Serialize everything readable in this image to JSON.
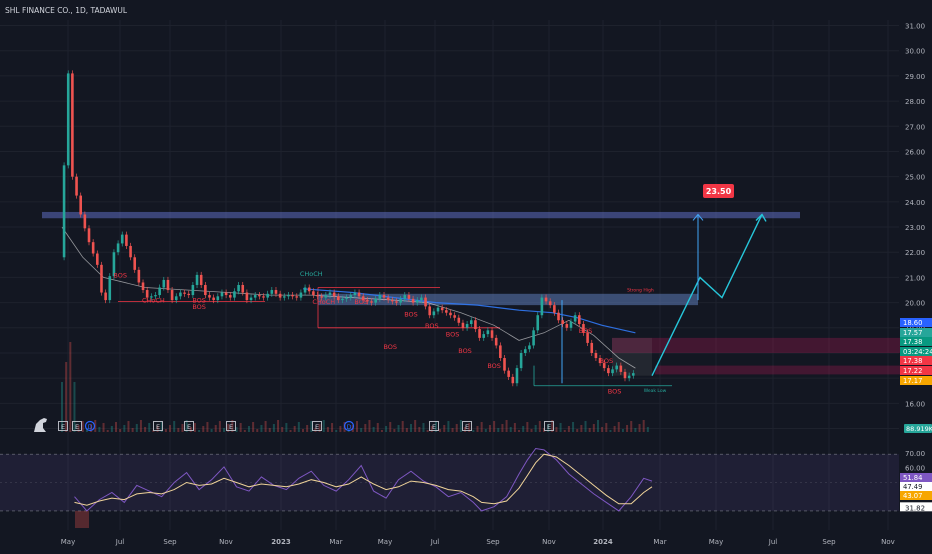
{
  "chart_data": {
    "type": "line",
    "title": "SHL FINANCE CO., 1D, TADAWUL",
    "price_scale": {
      "ylim": [
        15.3,
        31.3
      ],
      "ticks": [
        "31.00",
        "30.00",
        "29.00",
        "28.00",
        "27.00",
        "26.00",
        "25.00",
        "24.00",
        "23.00",
        "22.00",
        "21.00",
        "20.00",
        "19.00",
        "18.00",
        "17.00",
        "16.00",
        "15.00"
      ]
    },
    "time_axis": {
      "labels": [
        "May",
        "Jul",
        "Sep",
        "Nov",
        "2023",
        "Mar",
        "May",
        "Jul",
        "Sep",
        "Nov",
        "2024",
        "Mar",
        "May",
        "Jul",
        "Sep",
        "Nov"
      ],
      "bold": [
        "2023",
        "2024"
      ]
    },
    "price_series": {
      "name": "SHL FINANCE CO.",
      "points": [
        [
          0,
          21.8
        ],
        [
          2,
          29.1
        ],
        [
          3,
          25.0
        ],
        [
          5,
          23.5
        ],
        [
          7,
          22.4
        ],
        [
          9,
          21.5
        ],
        [
          10,
          20.4
        ],
        [
          11,
          20.1
        ],
        [
          13,
          22.0
        ],
        [
          15,
          22.7
        ],
        [
          17,
          21.8
        ],
        [
          19,
          20.8
        ],
        [
          21,
          20.2
        ],
        [
          23,
          20.3
        ],
        [
          25,
          20.9
        ],
        [
          27,
          20.1
        ],
        [
          29,
          20.4
        ],
        [
          31,
          20.3
        ],
        [
          33,
          21.1
        ],
        [
          35,
          20.3
        ],
        [
          37,
          20.1
        ],
        [
          39,
          20.4
        ],
        [
          41,
          20.2
        ],
        [
          43,
          20.7
        ],
        [
          45,
          20.1
        ],
        [
          47,
          20.3
        ],
        [
          49,
          20.2
        ],
        [
          51,
          20.5
        ],
        [
          53,
          20.2
        ],
        [
          55,
          20.3
        ],
        [
          57,
          20.2
        ],
        [
          59,
          20.6
        ],
        [
          61,
          20.3
        ],
        [
          63,
          20.2
        ],
        [
          65,
          20.4
        ],
        [
          67,
          20.1
        ],
        [
          69,
          20.2
        ],
        [
          71,
          20.4
        ],
        [
          73,
          20.1
        ],
        [
          75,
          20.0
        ],
        [
          77,
          20.3
        ],
        [
          79,
          20.1
        ],
        [
          81,
          20.0
        ],
        [
          83,
          20.3
        ],
        [
          85,
          20.0
        ],
        [
          87,
          20.2
        ],
        [
          89,
          19.5
        ],
        [
          91,
          19.8
        ],
        [
          93,
          19.6
        ],
        [
          95,
          19.4
        ],
        [
          97,
          19.0
        ],
        [
          99,
          19.3
        ],
        [
          101,
          18.6
        ],
        [
          103,
          18.9
        ],
        [
          105,
          18.3
        ],
        [
          107,
          17.3
        ],
        [
          109,
          16.8
        ],
        [
          111,
          18.0
        ],
        [
          113,
          18.3
        ],
        [
          115,
          19.5
        ],
        [
          116,
          20.2
        ],
        [
          118,
          19.9
        ],
        [
          120,
          19.3
        ],
        [
          122,
          19.0
        ],
        [
          124,
          19.5
        ],
        [
          126,
          18.8
        ],
        [
          128,
          18.0
        ],
        [
          130,
          17.6
        ],
        [
          132,
          17.2
        ],
        [
          134,
          17.5
        ],
        [
          136,
          17.0
        ],
        [
          138,
          17.2
        ]
      ]
    },
    "moving_averages": [
      {
        "color": "#3179f5",
        "points": [
          [
            58,
            20.55
          ],
          [
            70,
            20.4
          ],
          [
            80,
            20.2
          ],
          [
            90,
            20.0
          ],
          [
            100,
            19.9
          ],
          [
            110,
            19.7
          ],
          [
            118,
            19.6
          ],
          [
            124,
            19.4
          ],
          [
            130,
            19.1
          ],
          [
            138,
            18.8
          ]
        ]
      },
      {
        "color": "#ffffff",
        "points": [
          [
            0,
            23.0
          ],
          [
            5,
            21.8
          ],
          [
            10,
            21.0
          ],
          [
            20,
            20.6
          ],
          [
            30,
            20.5
          ],
          [
            40,
            20.4
          ],
          [
            50,
            20.3
          ],
          [
            60,
            20.3
          ],
          [
            70,
            20.2
          ],
          [
            80,
            20.1
          ],
          [
            88,
            20.0
          ],
          [
            96,
            19.6
          ],
          [
            104,
            19.1
          ],
          [
            110,
            18.5
          ],
          [
            116,
            18.8
          ],
          [
            122,
            19.3
          ],
          [
            128,
            18.7
          ],
          [
            134,
            17.8
          ],
          [
            138,
            17.4
          ]
        ]
      }
    ],
    "resistance_zone": {
      "label": "",
      "range": [
        23.35,
        23.6
      ]
    },
    "target_label": "23.50",
    "structure_labels": [
      {
        "text": "BOS",
        "x": 14,
        "y": 21.0
      },
      {
        "text": "CHoCH",
        "x": 22,
        "y": 20.0
      },
      {
        "text": "BOS",
        "x": 33,
        "y": 20.0
      },
      {
        "text": "BOS",
        "x": 33,
        "y": 19.75
      },
      {
        "text": "CHoCH",
        "x": 60,
        "y": 21.05
      },
      {
        "text": "CHoCH",
        "x": 63,
        "y": 19.95
      },
      {
        "text": "BOS",
        "x": 72,
        "y": 19.95
      },
      {
        "text": "BOS",
        "x": 84,
        "y": 19.45
      },
      {
        "text": "BOS",
        "x": 89,
        "y": 19.0
      },
      {
        "text": "BOS",
        "x": 79,
        "y": 18.15
      },
      {
        "text": "BOS",
        "x": 94,
        "y": 18.65
      },
      {
        "text": "BOS",
        "x": 97,
        "y": 18.0
      },
      {
        "text": "BOS",
        "x": 104,
        "y": 17.4
      },
      {
        "text": "BOS",
        "x": 126,
        "y": 18.8
      },
      {
        "text": "BOS",
        "x": 131,
        "y": 17.6
      },
      {
        "text": "BOS",
        "x": 133,
        "y": 16.4
      }
    ],
    "small_labels": [
      {
        "text": "Strong High",
        "x": 136,
        "y": 20.45
      },
      {
        "text": "Weak Low",
        "x": 140,
        "y": 16.45
      }
    ],
    "price_badges": [
      {
        "text": "18.60",
        "bg": "#2962ff"
      },
      {
        "text": "17.57",
        "bg": "#26a69a"
      },
      {
        "text": "17.38",
        "bg": "#089981"
      },
      {
        "text": "03:24:24",
        "bg": "#089981"
      },
      {
        "text": "17.38",
        "bg": "#f23645"
      },
      {
        "text": "17.22",
        "bg": "#f23645"
      },
      {
        "text": "17.17",
        "bg": "#f7a600"
      }
    ],
    "volume_badge": "88.919K",
    "event_markers": [
      "E",
      "E",
      "D",
      "E",
      "E",
      "E",
      "E",
      "D",
      "E",
      "E",
      "E"
    ],
    "indicator": {
      "ylim": [
        25,
        80
      ],
      "ticks": [
        "70.00",
        "60.00",
        "40.00",
        "31.82"
      ],
      "badges": [
        {
          "text": "51.84",
          "bg": "#7e57c2"
        },
        {
          "text": "47.49",
          "bg": "#ffffff"
        },
        {
          "text": "43.07",
          "bg": "#f7a600"
        }
      ],
      "rsi": [
        [
          3,
          40
        ],
        [
          6,
          30
        ],
        [
          9,
          38
        ],
        [
          12,
          43
        ],
        [
          15,
          36
        ],
        [
          18,
          48
        ],
        [
          21,
          44
        ],
        [
          24,
          40
        ],
        [
          27,
          50
        ],
        [
          30,
          57
        ],
        [
          33,
          45
        ],
        [
          36,
          52
        ],
        [
          39,
          61
        ],
        [
          42,
          47
        ],
        [
          45,
          44
        ],
        [
          48,
          54
        ],
        [
          51,
          48
        ],
        [
          54,
          45
        ],
        [
          57,
          53
        ],
        [
          60,
          58
        ],
        [
          63,
          48
        ],
        [
          66,
          44
        ],
        [
          69,
          52
        ],
        [
          72,
          62
        ],
        [
          75,
          44
        ],
        [
          78,
          39
        ],
        [
          81,
          52
        ],
        [
          84,
          58
        ],
        [
          87,
          51
        ],
        [
          90,
          47
        ],
        [
          93,
          40
        ],
        [
          96,
          43
        ],
        [
          99,
          36
        ],
        [
          101,
          30
        ],
        [
          104,
          33
        ],
        [
          107,
          40
        ],
        [
          110,
          56
        ],
        [
          112,
          66
        ],
        [
          114,
          74
        ],
        [
          116,
          73
        ],
        [
          119,
          66
        ],
        [
          122,
          56
        ],
        [
          125,
          49
        ],
        [
          128,
          42
        ],
        [
          131,
          36
        ],
        [
          134,
          30
        ],
        [
          137,
          40
        ],
        [
          140,
          53
        ],
        [
          142,
          51
        ]
      ],
      "signal": [
        [
          3,
          36
        ],
        [
          6,
          34
        ],
        [
          9,
          37
        ],
        [
          12,
          39
        ],
        [
          15,
          38
        ],
        [
          18,
          42
        ],
        [
          21,
          43
        ],
        [
          24,
          42
        ],
        [
          27,
          45
        ],
        [
          30,
          50
        ],
        [
          33,
          48
        ],
        [
          36,
          49
        ],
        [
          39,
          53
        ],
        [
          42,
          50
        ],
        [
          45,
          47
        ],
        [
          48,
          49
        ],
        [
          51,
          48
        ],
        [
          54,
          47
        ],
        [
          57,
          49
        ],
        [
          60,
          52
        ],
        [
          63,
          50
        ],
        [
          66,
          47
        ],
        [
          69,
          49
        ],
        [
          72,
          54
        ],
        [
          75,
          49
        ],
        [
          78,
          45
        ],
        [
          81,
          47
        ],
        [
          84,
          51
        ],
        [
          87,
          50
        ],
        [
          90,
          48
        ],
        [
          93,
          45
        ],
        [
          96,
          44
        ],
        [
          99,
          40
        ],
        [
          101,
          36
        ],
        [
          104,
          35
        ],
        [
          107,
          37
        ],
        [
          110,
          46
        ],
        [
          112,
          55
        ],
        [
          114,
          64
        ],
        [
          116,
          70
        ],
        [
          119,
          68
        ],
        [
          122,
          62
        ],
        [
          125,
          55
        ],
        [
          128,
          48
        ],
        [
          131,
          41
        ],
        [
          134,
          35
        ],
        [
          137,
          35
        ],
        [
          140,
          43
        ],
        [
          142,
          47
        ]
      ]
    }
  }
}
